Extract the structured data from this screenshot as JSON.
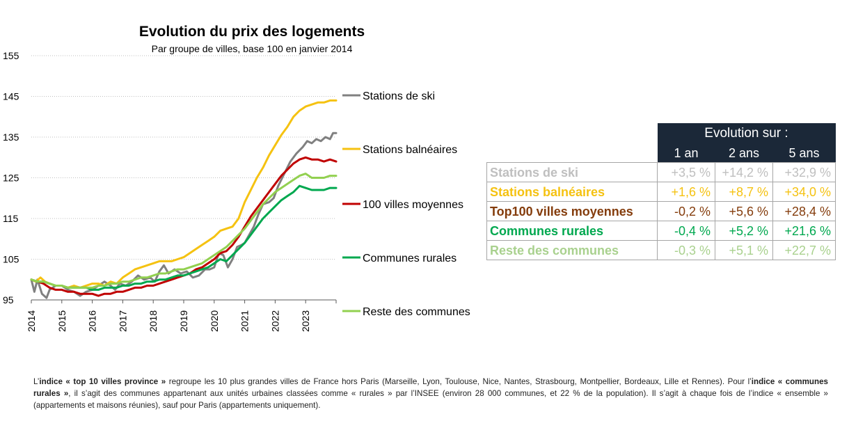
{
  "chart_data": {
    "type": "line",
    "title": "Evolution du prix des logements",
    "subtitle": "Par groupe de villes, base 100 en janvier 2014",
    "xlabel": "",
    "ylabel": "",
    "ylim": [
      95,
      155
    ],
    "yticks": [
      95,
      105,
      115,
      125,
      135,
      145,
      155
    ],
    "xticks": [
      "2014",
      "2015",
      "2016",
      "2017",
      "2018",
      "2019",
      "2020",
      "2021",
      "2022",
      "2023"
    ],
    "xlim": [
      2014,
      2024
    ],
    "grid": "horizontal dotted",
    "legend": "right, at end of lines",
    "series": [
      {
        "name": "Stations de ski",
        "color": "#808080",
        "points": [
          [
            2014.0,
            100
          ],
          [
            2014.1,
            97
          ],
          [
            2014.2,
            100
          ],
          [
            2014.35,
            96.5
          ],
          [
            2014.5,
            95.5
          ],
          [
            2014.6,
            97.5
          ],
          [
            2014.8,
            98.5
          ],
          [
            2015.0,
            98.5
          ],
          [
            2015.2,
            97.5
          ],
          [
            2015.4,
            97
          ],
          [
            2015.6,
            96
          ],
          [
            2015.8,
            97
          ],
          [
            2016.0,
            97.5
          ],
          [
            2016.2,
            98.5
          ],
          [
            2016.4,
            99.5
          ],
          [
            2016.6,
            98.5
          ],
          [
            2016.75,
            97.5
          ],
          [
            2016.9,
            99
          ],
          [
            2017.1,
            98.5
          ],
          [
            2017.3,
            99.5
          ],
          [
            2017.5,
            101
          ],
          [
            2017.7,
            100
          ],
          [
            2017.9,
            100.5
          ],
          [
            2018.05,
            99.5
          ],
          [
            2018.2,
            102
          ],
          [
            2018.35,
            103.5
          ],
          [
            2018.5,
            101.5
          ],
          [
            2018.7,
            102.5
          ],
          [
            2018.9,
            101.5
          ],
          [
            2019.1,
            102
          ],
          [
            2019.3,
            100.5
          ],
          [
            2019.5,
            101
          ],
          [
            2019.7,
            102.5
          ],
          [
            2019.85,
            102.5
          ],
          [
            2020.0,
            103
          ],
          [
            2020.15,
            106.5
          ],
          [
            2020.3,
            106
          ],
          [
            2020.45,
            103
          ],
          [
            2020.6,
            105
          ],
          [
            2020.75,
            108
          ],
          [
            2020.9,
            108.5
          ],
          [
            2021.0,
            109
          ],
          [
            2021.15,
            111
          ],
          [
            2021.3,
            113
          ],
          [
            2021.45,
            116
          ],
          [
            2021.6,
            118.5
          ],
          [
            2021.8,
            119
          ],
          [
            2021.95,
            120
          ],
          [
            2022.1,
            123
          ],
          [
            2022.3,
            126
          ],
          [
            2022.5,
            129
          ],
          [
            2022.7,
            131
          ],
          [
            2022.9,
            132.5
          ],
          [
            2023.05,
            134
          ],
          [
            2023.2,
            133.5
          ],
          [
            2023.35,
            134.5
          ],
          [
            2023.5,
            134
          ],
          [
            2023.65,
            135
          ],
          [
            2023.8,
            134.5
          ],
          [
            2023.9,
            136
          ],
          [
            2024.0,
            136
          ]
        ]
      },
      {
        "name": "Stations balnéaires",
        "color": "#f5c211",
        "points": [
          [
            2014.0,
            100
          ],
          [
            2014.15,
            99.5
          ],
          [
            2014.3,
            100.5
          ],
          [
            2014.45,
            99.5
          ],
          [
            2014.6,
            99
          ],
          [
            2014.8,
            98.5
          ],
          [
            2015.0,
            98.5
          ],
          [
            2015.2,
            98
          ],
          [
            2015.4,
            98.5
          ],
          [
            2015.6,
            98
          ],
          [
            2015.8,
            98.5
          ],
          [
            2016.0,
            99
          ],
          [
            2016.2,
            99
          ],
          [
            2016.4,
            98.5
          ],
          [
            2016.6,
            99.5
          ],
          [
            2016.8,
            99
          ],
          [
            2017.0,
            100.5
          ],
          [
            2017.2,
            101.5
          ],
          [
            2017.4,
            102.5
          ],
          [
            2017.6,
            103
          ],
          [
            2017.8,
            103.5
          ],
          [
            2018.0,
            104
          ],
          [
            2018.2,
            104.5
          ],
          [
            2018.4,
            104.5
          ],
          [
            2018.6,
            104.5
          ],
          [
            2018.8,
            105
          ],
          [
            2019.0,
            105.5
          ],
          [
            2019.2,
            106.5
          ],
          [
            2019.4,
            107.5
          ],
          [
            2019.6,
            108.5
          ],
          [
            2019.8,
            109.5
          ],
          [
            2020.0,
            110.5
          ],
          [
            2020.2,
            112
          ],
          [
            2020.4,
            112.5
          ],
          [
            2020.6,
            113
          ],
          [
            2020.8,
            115
          ],
          [
            2021.0,
            119
          ],
          [
            2021.2,
            122
          ],
          [
            2021.4,
            125
          ],
          [
            2021.6,
            127.5
          ],
          [
            2021.8,
            130.5
          ],
          [
            2022.0,
            133
          ],
          [
            2022.2,
            135.5
          ],
          [
            2022.4,
            137.5
          ],
          [
            2022.6,
            140
          ],
          [
            2022.8,
            141.5
          ],
          [
            2023.0,
            142.5
          ],
          [
            2023.2,
            143
          ],
          [
            2023.4,
            143.5
          ],
          [
            2023.6,
            143.5
          ],
          [
            2023.8,
            144
          ],
          [
            2024.0,
            144
          ]
        ]
      },
      {
        "name": "100 villes moyennes",
        "color": "#c00000",
        "points": [
          [
            2014.0,
            100
          ],
          [
            2014.2,
            99.5
          ],
          [
            2014.4,
            99
          ],
          [
            2014.6,
            98
          ],
          [
            2014.8,
            97.5
          ],
          [
            2015.0,
            97.5
          ],
          [
            2015.2,
            97
          ],
          [
            2015.4,
            97
          ],
          [
            2015.6,
            96.5
          ],
          [
            2015.8,
            96.5
          ],
          [
            2016.0,
            96.5
          ],
          [
            2016.2,
            96
          ],
          [
            2016.4,
            96.5
          ],
          [
            2016.6,
            96.5
          ],
          [
            2016.8,
            97
          ],
          [
            2017.0,
            97
          ],
          [
            2017.2,
            97.5
          ],
          [
            2017.4,
            98
          ],
          [
            2017.6,
            98
          ],
          [
            2017.8,
            98.5
          ],
          [
            2018.0,
            98.5
          ],
          [
            2018.2,
            99
          ],
          [
            2018.4,
            99.5
          ],
          [
            2018.6,
            100
          ],
          [
            2018.8,
            100.5
          ],
          [
            2019.0,
            101
          ],
          [
            2019.2,
            101.5
          ],
          [
            2019.4,
            102.5
          ],
          [
            2019.6,
            103
          ],
          [
            2019.8,
            104
          ],
          [
            2020.0,
            105
          ],
          [
            2020.2,
            106.5
          ],
          [
            2020.4,
            107
          ],
          [
            2020.6,
            108.5
          ],
          [
            2020.8,
            110.5
          ],
          [
            2021.0,
            113
          ],
          [
            2021.2,
            115.5
          ],
          [
            2021.4,
            117.5
          ],
          [
            2021.6,
            119.5
          ],
          [
            2021.8,
            121.5
          ],
          [
            2022.0,
            123.5
          ],
          [
            2022.2,
            125.5
          ],
          [
            2022.4,
            127
          ],
          [
            2022.6,
            128.5
          ],
          [
            2022.8,
            129.5
          ],
          [
            2023.0,
            130
          ],
          [
            2023.2,
            129.5
          ],
          [
            2023.4,
            129.5
          ],
          [
            2023.6,
            129
          ],
          [
            2023.8,
            129.5
          ],
          [
            2024.0,
            129
          ]
        ]
      },
      {
        "name": "Communes rurales",
        "color": "#00a84f",
        "points": [
          [
            2014.0,
            100
          ],
          [
            2014.2,
            99.5
          ],
          [
            2014.4,
            99.5
          ],
          [
            2014.6,
            99
          ],
          [
            2014.8,
            98.5
          ],
          [
            2015.0,
            98.5
          ],
          [
            2015.2,
            98
          ],
          [
            2015.4,
            98
          ],
          [
            2015.6,
            98
          ],
          [
            2015.8,
            98
          ],
          [
            2016.0,
            97.5
          ],
          [
            2016.2,
            97.5
          ],
          [
            2016.4,
            98
          ],
          [
            2016.6,
            98
          ],
          [
            2016.8,
            98
          ],
          [
            2017.0,
            98.5
          ],
          [
            2017.2,
            98.5
          ],
          [
            2017.4,
            99
          ],
          [
            2017.6,
            99
          ],
          [
            2017.8,
            99.5
          ],
          [
            2018.0,
            99.5
          ],
          [
            2018.2,
            100
          ],
          [
            2018.4,
            100
          ],
          [
            2018.6,
            100.5
          ],
          [
            2018.8,
            101
          ],
          [
            2019.0,
            101
          ],
          [
            2019.2,
            101.5
          ],
          [
            2019.4,
            102
          ],
          [
            2019.6,
            102.5
          ],
          [
            2019.8,
            103
          ],
          [
            2020.0,
            104
          ],
          [
            2020.2,
            105
          ],
          [
            2020.4,
            104.5
          ],
          [
            2020.6,
            106
          ],
          [
            2020.8,
            107.5
          ],
          [
            2021.0,
            109
          ],
          [
            2021.2,
            111
          ],
          [
            2021.4,
            113
          ],
          [
            2021.6,
            115
          ],
          [
            2021.8,
            116.5
          ],
          [
            2022.0,
            118
          ],
          [
            2022.2,
            119.5
          ],
          [
            2022.4,
            120.5
          ],
          [
            2022.6,
            121.5
          ],
          [
            2022.8,
            123
          ],
          [
            2023.0,
            122.5
          ],
          [
            2023.2,
            122
          ],
          [
            2023.4,
            122
          ],
          [
            2023.6,
            122
          ],
          [
            2023.8,
            122.5
          ],
          [
            2024.0,
            122.5
          ]
        ]
      },
      {
        "name": "Reste des communes",
        "color": "#92d050",
        "points": [
          [
            2014.0,
            100
          ],
          [
            2014.2,
            99.5
          ],
          [
            2014.4,
            99.5
          ],
          [
            2014.6,
            99
          ],
          [
            2014.8,
            98.5
          ],
          [
            2015.0,
            98.5
          ],
          [
            2015.2,
            98
          ],
          [
            2015.4,
            98
          ],
          [
            2015.6,
            98
          ],
          [
            2015.8,
            98
          ],
          [
            2016.0,
            98
          ],
          [
            2016.2,
            98.5
          ],
          [
            2016.4,
            98.5
          ],
          [
            2016.6,
            99
          ],
          [
            2016.8,
            99
          ],
          [
            2017.0,
            99.5
          ],
          [
            2017.2,
            99.5
          ],
          [
            2017.4,
            100
          ],
          [
            2017.6,
            100.5
          ],
          [
            2017.8,
            100.5
          ],
          [
            2018.0,
            101
          ],
          [
            2018.2,
            101.5
          ],
          [
            2018.4,
            101.5
          ],
          [
            2018.6,
            102
          ],
          [
            2018.8,
            102.5
          ],
          [
            2019.0,
            102.5
          ],
          [
            2019.2,
            103
          ],
          [
            2019.4,
            103.5
          ],
          [
            2019.6,
            104
          ],
          [
            2019.8,
            105
          ],
          [
            2020.0,
            106
          ],
          [
            2020.2,
            107
          ],
          [
            2020.4,
            108
          ],
          [
            2020.6,
            109.5
          ],
          [
            2020.8,
            111
          ],
          [
            2021.0,
            112.5
          ],
          [
            2021.2,
            114.5
          ],
          [
            2021.4,
            116.5
          ],
          [
            2021.6,
            118.5
          ],
          [
            2021.8,
            120
          ],
          [
            2022.0,
            121.5
          ],
          [
            2022.2,
            122.5
          ],
          [
            2022.4,
            123.5
          ],
          [
            2022.6,
            124.5
          ],
          [
            2022.8,
            125.5
          ],
          [
            2023.0,
            126
          ],
          [
            2023.2,
            125
          ],
          [
            2023.4,
            125
          ],
          [
            2023.6,
            125
          ],
          [
            2023.8,
            125.5
          ],
          [
            2024.0,
            125.5
          ]
        ]
      }
    ]
  },
  "legend_labels": [
    "Stations de ski",
    "Stations balnéaires",
    "100 villes moyennes",
    "Communes rurales",
    "Reste des communes"
  ],
  "table": {
    "header_title": "Evolution sur :",
    "columns": [
      "1 an",
      "2 ans",
      "5 ans"
    ],
    "rows": [
      {
        "label": "Stations de ski",
        "color": "#bfbfbf",
        "values": [
          "+3,5  %",
          "+14,2  %",
          "+32,9  %"
        ]
      },
      {
        "label": "Stations balnéaires",
        "color": "#f5c211",
        "values": [
          "+1,6  %",
          "+8,7  %",
          "+34,0  %"
        ]
      },
      {
        "label": "Top100 villes moyennes",
        "color": "#843c0c",
        "values": [
          "-0,2  %",
          "+5,6  %",
          "+28,4  %"
        ]
      },
      {
        "label": "Communes rurales",
        "color": "#00a84f",
        "values": [
          "-0,4  %",
          "+5,2  %",
          "+21,6  %"
        ]
      },
      {
        "label": "Reste des communes",
        "color": "#a9d18e",
        "values": [
          "-0,3  %",
          "+5,1  %",
          "+22,7  %"
        ]
      }
    ]
  },
  "note": {
    "p1": "L’",
    "b1": "indice « top 10 villes province »",
    "p2": " regroupe les 10 plus grandes villes de France hors Paris (Marseille, Lyon, Toulouse, Nice, Nantes, Strasbourg, Montpellier, Bordeaux, Lille et Rennes). Pour l’",
    "b2": "indice « communes rurales »",
    "p3": ", il s’agit des communes appartenant aux unités urbaines classées comme « rurales » par l’INSEE (environ 28 000 communes, et 22 % de la population). Il s’agit à chaque fois de l’indice « ensemble » (appartements et maisons réunies), sauf pour Paris (appartements uniquement)."
  }
}
